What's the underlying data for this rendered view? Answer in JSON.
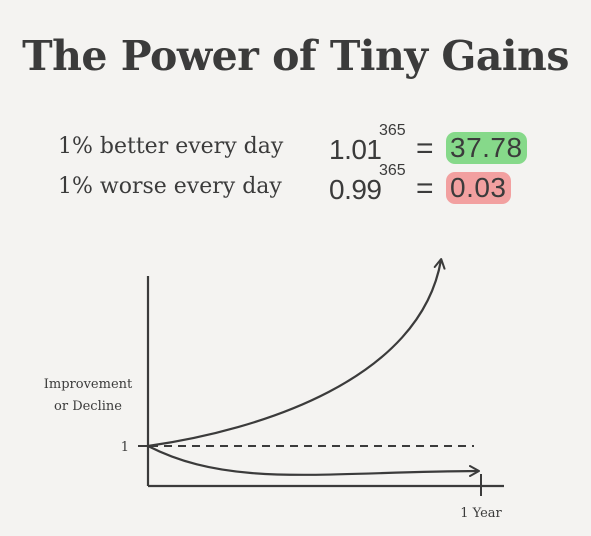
{
  "title": "The Power of Tiny Gains",
  "equations": [
    {
      "label": "1% better every day",
      "base": "1.01",
      "exponent": "365",
      "sign": "=",
      "result": "37.78",
      "highlight": "#86d98a"
    },
    {
      "label": "1% worse every day",
      "base": "0.99",
      "exponent": "365",
      "sign": "=",
      "result": "0.03",
      "highlight": "#f2a0a0"
    }
  ],
  "chart_data": {
    "type": "line",
    "ylabel_line1": "Improvement",
    "ylabel_line2": "or Decline",
    "y_tick_label": "1",
    "x_tick_label": "1 Year",
    "x": [
      0,
      1
    ],
    "series": [
      {
        "start": 1,
        "end": 37.78,
        "style": "solid"
      },
      {
        "start": 1,
        "end": 1,
        "style": "dashed"
      },
      {
        "start": 1,
        "end": 0.03,
        "style": "solid"
      }
    ],
    "line_color": "#3b3b3b",
    "grid": false
  }
}
